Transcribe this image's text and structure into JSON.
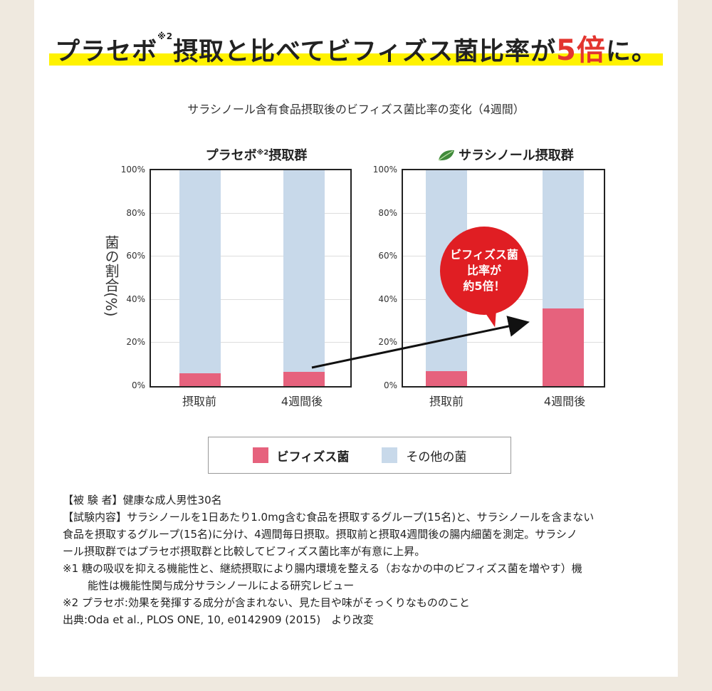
{
  "headline": {
    "part1": "プラセボ",
    "sup": "※2",
    "part2": "摂取と比べてビフィズス菌比率が",
    "emph": "5倍",
    "part3": "に。"
  },
  "colors": {
    "bifidobacteria": "#e6627d",
    "other": "#c8d9ea",
    "highlight": "#fff200",
    "accent": "#e3352f",
    "bubble": "#e01e23"
  },
  "chart_data": {
    "type": "bar",
    "stacked": true,
    "title": "サラシノール含有食品摂取後のビフィズス菌比率の変化（4週間）",
    "ylabel": "菌の割合(%)",
    "ylim": [
      0,
      100
    ],
    "yticks": [
      "100%",
      "80%",
      "60%",
      "40%",
      "20%",
      "0%"
    ],
    "legend": [
      "ビフィズス菌",
      "その他の菌"
    ],
    "panels": [
      {
        "title": "プラセボ",
        "title_sup": "※2",
        "title_suffix": "摂取群",
        "categories": [
          "摂取前",
          "4週間後"
        ],
        "series": [
          {
            "name": "ビフィズス菌",
            "values": [
              5.8,
              6.5
            ]
          },
          {
            "name": "その他の菌",
            "values": [
              94.2,
              93.5
            ]
          }
        ]
      },
      {
        "title": "サラシノール摂取群",
        "icon": "leaf-icon",
        "categories": [
          "摂取前",
          "4週間後"
        ],
        "series": [
          {
            "name": "ビフィズス菌",
            "values": [
              7,
              36
            ]
          },
          {
            "name": "その他の菌",
            "values": [
              93,
              64
            ]
          }
        ]
      }
    ],
    "annotation": {
      "lines": [
        "ビフィズス菌",
        "比率が",
        "約5倍！"
      ]
    }
  },
  "notes": [
    "【被 験 者】健康な成人男性30名",
    "【試験内容】サラシノールを1日あたり1.0mg含む食品を摂取するグループ(15名)と、サラシノールを含まない",
    "食品を摂取するグループ(15名)に分け、4週間毎日摂取。摂取前と摂取4週間後の腸内細菌を測定。サラシノ",
    "ール摂取群ではプラセボ摂取群と比較してビフィズス菌比率が有意に上昇。",
    "※1 糖の吸収を抑える機能性と、継続摂取により腸内環境を整える（おなかの中のビフィズス菌を増やす）機",
    "能性は機能性関与成分サラシノールによる研究レビュー",
    "※2 プラセボ:効果を発揮する成分が含まれない、見た目や味がそっくりなもののこと",
    "出典:Oda et al., PLOS ONE, 10, e0142909 (2015)　より改変"
  ]
}
